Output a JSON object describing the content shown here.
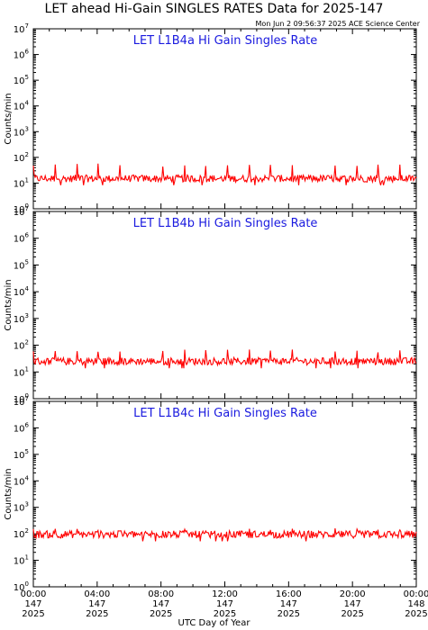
{
  "title": "LET ahead Hi-Gain SINGLES RATES Data for 2025-147",
  "timestamp": "Mon Jun  2 09:56:37 2025 ACE Science Center",
  "xlabel": "UTC Day of Year",
  "colors": {
    "series": "#ff0000",
    "panel_title": "#1a1adf",
    "axes": "#000000"
  },
  "chart_data": [
    {
      "type": "line",
      "title": "LET L1B4a Hi Gain Singles Rate",
      "ylabel": "Counts/min",
      "yscale": "log",
      "ylim": [
        1,
        10000000
      ],
      "yticks": [
        {
          "base": "10",
          "exp": "0"
        },
        {
          "base": "10",
          "exp": "1"
        },
        {
          "base": "10",
          "exp": "2"
        },
        {
          "base": "10",
          "exp": "3"
        },
        {
          "base": "10",
          "exp": "4"
        },
        {
          "base": "10",
          "exp": "5"
        },
        {
          "base": "10",
          "exp": "6"
        },
        {
          "base": "10",
          "exp": "7"
        }
      ],
      "xlim_hours": [
        0,
        24
      ],
      "series": [
        {
          "color": "#ff0000",
          "baseline": 15,
          "spike_peak": 50,
          "x_hours": [
            0,
            2,
            4,
            6,
            8,
            10,
            12,
            14,
            16,
            18,
            20,
            22,
            24
          ],
          "values": [
            15,
            16,
            14,
            16,
            15,
            15,
            16,
            15,
            15,
            16,
            15,
            15,
            16
          ]
        }
      ]
    },
    {
      "type": "line",
      "title": "LET L1B4b Hi Gain Singles Rate",
      "ylabel": "Counts/min",
      "yscale": "log",
      "ylim": [
        1,
        10000000
      ],
      "yticks": [
        {
          "base": "10",
          "exp": "0"
        },
        {
          "base": "10",
          "exp": "1"
        },
        {
          "base": "10",
          "exp": "2"
        },
        {
          "base": "10",
          "exp": "3"
        },
        {
          "base": "10",
          "exp": "4"
        },
        {
          "base": "10",
          "exp": "5"
        },
        {
          "base": "10",
          "exp": "6"
        },
        {
          "base": "10",
          "exp": "7"
        }
      ],
      "xlim_hours": [
        0,
        24
      ],
      "series": [
        {
          "color": "#ff0000",
          "baseline": 25,
          "spike_peak": 60,
          "x_hours": [
            0,
            2,
            4,
            6,
            8,
            10,
            12,
            14,
            16,
            18,
            20,
            22,
            24
          ],
          "values": [
            25,
            27,
            25,
            26,
            25,
            26,
            25,
            25,
            26,
            25,
            25,
            26,
            25
          ]
        }
      ]
    },
    {
      "type": "line",
      "title": "LET L1B4c Hi Gain Singles Rate",
      "ylabel": "Counts/min",
      "yscale": "log",
      "ylim": [
        1,
        10000000
      ],
      "yticks": [
        {
          "base": "10",
          "exp": "0"
        },
        {
          "base": "10",
          "exp": "1"
        },
        {
          "base": "10",
          "exp": "2"
        },
        {
          "base": "10",
          "exp": "3"
        },
        {
          "base": "10",
          "exp": "4"
        },
        {
          "base": "10",
          "exp": "5"
        },
        {
          "base": "10",
          "exp": "6"
        },
        {
          "base": "10",
          "exp": "7"
        }
      ],
      "xlim_hours": [
        0,
        24
      ],
      "series": [
        {
          "color": "#ff0000",
          "baseline": 95,
          "spike_peak": 140,
          "x_hours": [
            0,
            2,
            4,
            6,
            8,
            10,
            12,
            14,
            16,
            18,
            20,
            22,
            24
          ],
          "values": [
            95,
            98,
            92,
            96,
            95,
            97,
            94,
            96,
            95,
            97,
            95,
            96,
            98
          ]
        }
      ]
    }
  ],
  "xticks": [
    {
      "time": "00:00",
      "doy": "147",
      "year": "2025"
    },
    {
      "time": "04:00",
      "doy": "147",
      "year": "2025"
    },
    {
      "time": "08:00",
      "doy": "147",
      "year": "2025"
    },
    {
      "time": "12:00",
      "doy": "147",
      "year": "2025"
    },
    {
      "time": "16:00",
      "doy": "147",
      "year": "2025"
    },
    {
      "time": "20:00",
      "doy": "147",
      "year": "2025"
    },
    {
      "time": "00:00",
      "doy": "148",
      "year": "2025"
    }
  ]
}
